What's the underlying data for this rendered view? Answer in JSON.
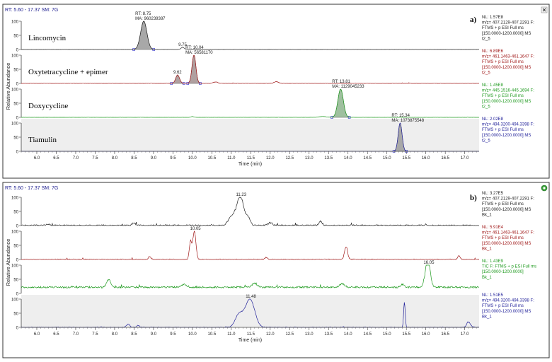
{
  "colors": {
    "black": "#222222",
    "red": "#a01818",
    "green": "#1f9a1f",
    "blue": "#22229a",
    "fill_gray": "#a8a8a8",
    "fill_red": "#b0a0a0",
    "fill_green": "#9fc09f",
    "shade": "#eeeeee",
    "header_blue": "#202090"
  },
  "chart_data": [
    {
      "type": "line",
      "panel_label": "a)",
      "header": "RT: 5.60 - 17.37  SM: 7G",
      "corner_icon": "pin-icon",
      "xlabel": "Time (min)",
      "ylabel": "Relative Abundance",
      "xlim": [
        5.6,
        17.37
      ],
      "x_ticks": [
        "6.0",
        "6.5",
        "7.0",
        "7.5",
        "8.0",
        "8.5",
        "9.0",
        "9.5",
        "10.0",
        "10.5",
        "11.0",
        "11.5",
        "12.0",
        "12.5",
        "13.0",
        "13.5",
        "14.0",
        "14.5",
        "15.0",
        "15.5",
        "16.0",
        "16.5",
        "17.0"
      ],
      "series": [
        {
          "name": "Lincomycin",
          "color": "black",
          "fill": "fill_gray",
          "y_ticks": [
            "100",
            "50",
            "0"
          ],
          "info": [
            "NL: 1.57E8",
            "m/z= 407.2129-407.2291 F:",
            "FTMS + p ESI Full ms",
            "[150.0000-1200.0000]  MS",
            "t2_5"
          ],
          "annotations": [
            {
              "x": 8.75,
              "y": 100,
              "lines": [
                "RT: 8.75",
                "MA: 960239387"
              ]
            },
            {
              "x": 9.75,
              "y": 8,
              "lines": [
                "9.75"
              ]
            }
          ],
          "peaks": [
            {
              "x": 8.75,
              "y": 100,
              "w": 0.08,
              "filled": true
            },
            {
              "x": 9.75,
              "y": 8,
              "w": 0.04,
              "filled": false
            }
          ],
          "noise": 0.4
        },
        {
          "name": "Oxytetracycline + epimer",
          "color": "red",
          "fill": "fill_red",
          "y_ticks": [
            "100",
            "50",
            "0"
          ],
          "info": [
            "NL: 6.89E6",
            "m/z= 461.1463-461.1647 F:",
            "FTMS + p ESI Full ms",
            "[150.0000-1200.0000]  MS",
            "t2_5"
          ],
          "annotations": [
            {
              "x": 10.04,
              "y": 100,
              "lines": [
                "RT: 10.04",
                "MA: 56581170"
              ]
            },
            {
              "x": 9.62,
              "y": 30,
              "lines": [
                "9.62"
              ]
            }
          ],
          "peaks": [
            {
              "x": 10.04,
              "y": 100,
              "w": 0.05,
              "filled": true
            },
            {
              "x": 9.62,
              "y": 30,
              "w": 0.05,
              "filled": true
            },
            {
              "x": 10.6,
              "y": 5,
              "w": 0.06,
              "filled": false
            },
            {
              "x": 12.15,
              "y": 6,
              "w": 0.06,
              "filled": false
            }
          ],
          "noise": 0.8
        },
        {
          "name": "Doxycycline",
          "color": "green",
          "fill": "fill_green",
          "y_ticks": [
            "100",
            "50",
            "0"
          ],
          "info": [
            "NL: 1.45E8",
            "m/z= 445.1516-445.1694 F:",
            "FTMS + p ESI Full ms",
            "[150.0000-1200.0000]  MS",
            "t2_5"
          ],
          "annotations": [
            {
              "x": 13.81,
              "y": 100,
              "lines": [
                "RT: 13.81",
                "MA: 1129045233"
              ]
            }
          ],
          "peaks": [
            {
              "x": 13.81,
              "y": 100,
              "w": 0.07,
              "filled": true
            },
            {
              "x": 13.35,
              "y": 3,
              "w": 0.1,
              "filled": false
            },
            {
              "x": 10.0,
              "y": 3,
              "w": 0.04,
              "filled": false
            }
          ],
          "noise": 0.4
        },
        {
          "name": "Tiamulin",
          "color": "blue",
          "fill": "fill_gray",
          "y_ticks": [
            "100",
            "50",
            "0"
          ],
          "info": [
            "NL: 2.02E8",
            "m/z= 494.3200-494.3398 F:",
            "FTMS + p ESI Full ms",
            "[150.0000-1200.0000]  MS",
            "t2_5"
          ],
          "annotations": [
            {
              "x": 15.34,
              "y": 100,
              "lines": [
                "RT: 15.34",
                "MA: 1073875548"
              ]
            }
          ],
          "peaks": [
            {
              "x": 15.34,
              "y": 100,
              "w": 0.05,
              "filled": true
            }
          ],
          "noise": 0.3,
          "shaded": true
        }
      ]
    },
    {
      "type": "line",
      "panel_label": "b)",
      "header": "RT: 5.60 - 17.37  SM: 7G",
      "corner_icon": "refresh-icon",
      "xlabel": "Time (min)",
      "ylabel": "Relative Abundance",
      "xlim": [
        5.6,
        17.37
      ],
      "x_ticks": [
        "6.0",
        "6.5",
        "7.0",
        "7.5",
        "8.0",
        "8.5",
        "9.0",
        "9.5",
        "10.0",
        "10.5",
        "11.0",
        "11.5",
        "12.0",
        "12.5",
        "13.0",
        "13.5",
        "14.0",
        "14.5",
        "15.0",
        "15.5",
        "16.0",
        "16.5",
        "17.0"
      ],
      "series": [
        {
          "name": "",
          "color": "black",
          "y_ticks": [
            "100",
            "50",
            "0"
          ],
          "info": [
            "NL: 3.27E5",
            "m/z= 407.2129-407.2291 F:",
            "FTMS + p ESI Full ms",
            "[150.0000-1200.0000]  MS",
            "Bk_1"
          ],
          "annotations": [
            {
              "x": 11.23,
              "y": 100,
              "lines": [
                "11.23"
              ]
            }
          ],
          "peaks": [
            {
              "x": 11.23,
              "y": 100,
              "w": 0.1,
              "filled": false
            },
            {
              "x": 11.0,
              "y": 28,
              "w": 0.08,
              "filled": false
            },
            {
              "x": 11.45,
              "y": 22,
              "w": 0.05,
              "filled": false
            },
            {
              "x": 13.3,
              "y": 15,
              "w": 0.04,
              "filled": false
            },
            {
              "x": 12.0,
              "y": 10,
              "w": 0.06,
              "filled": false
            },
            {
              "x": 8.5,
              "y": 8,
              "w": 0.05,
              "filled": false
            },
            {
              "x": 16.0,
              "y": 5,
              "w": 0.03,
              "filled": false
            },
            {
              "x": 6.3,
              "y": 5,
              "w": 0.05,
              "filled": false
            }
          ],
          "noise": 3
        },
        {
          "name": "",
          "color": "red",
          "y_ticks": [
            "100",
            "50",
            "0"
          ],
          "info": [
            "NL: 5.91E4",
            "m/z= 461.1463-461.1647 F:",
            "FTMS + p ESI Full ms",
            "[150.0000-1200.0000]  MS",
            "Bk_1"
          ],
          "annotations": [
            {
              "x": 10.05,
              "y": 100,
              "lines": [
                "10.05"
              ]
            }
          ],
          "peaks": [
            {
              "x": 10.05,
              "y": 100,
              "w": 0.04,
              "filled": false
            },
            {
              "x": 9.95,
              "y": 62,
              "w": 0.03,
              "filled": false
            },
            {
              "x": 13.95,
              "y": 45,
              "w": 0.04,
              "filled": false
            },
            {
              "x": 8.9,
              "y": 10,
              "w": 0.03,
              "filled": false
            },
            {
              "x": 16.85,
              "y": 14,
              "w": 0.03,
              "filled": false
            },
            {
              "x": 11.9,
              "y": 8,
              "w": 0.04,
              "filled": false
            }
          ],
          "noise": 2
        },
        {
          "name": "",
          "color": "green",
          "y_ticks": [
            "100",
            "50",
            "0"
          ],
          "info": [
            "NL: 1.43E9",
            "TIC F: FTMS + p ESI Full ms",
            "[150.0000-1200.0000]",
            "Bk_1"
          ],
          "annotations": [
            {
              "x": 16.05,
              "y": 100,
              "lines": [
                "16.05"
              ]
            }
          ],
          "peaks": [
            {
              "x": 16.05,
              "y": 100,
              "w": 0.06,
              "filled": false
            },
            {
              "x": 7.85,
              "y": 28,
              "w": 0.05,
              "filled": false
            },
            {
              "x": 11.6,
              "y": 15,
              "w": 0.06,
              "filled": false
            },
            {
              "x": 13.85,
              "y": 12,
              "w": 0.06,
              "filled": false
            },
            {
              "x": 9.8,
              "y": 10,
              "w": 0.06,
              "filled": false
            },
            {
              "x": 15.4,
              "y": 10,
              "w": 0.05,
              "filled": false
            }
          ],
          "baseline": 22,
          "noise": 3
        },
        {
          "name": "",
          "color": "blue",
          "y_ticks": [
            "100",
            "50",
            "0"
          ],
          "info": [
            "NL: 1.51E5",
            "m/z= 494.3200-494.3398 F:",
            "FTMS + p ESI Full ms",
            "[150.0000-1200.0000]  MS",
            "Bk_1"
          ],
          "annotations": [
            {
              "x": 11.48,
              "y": 100,
              "lines": [
                "11.48"
              ]
            }
          ],
          "peaks": [
            {
              "x": 11.48,
              "y": 100,
              "w": 0.12,
              "filled": false
            },
            {
              "x": 11.2,
              "y": 45,
              "w": 0.1,
              "filled": false
            },
            {
              "x": 15.45,
              "y": 90,
              "w": 0.02,
              "filled": false
            },
            {
              "x": 17.1,
              "y": 18,
              "w": 0.05,
              "filled": false
            },
            {
              "x": 8.35,
              "y": 12,
              "w": 0.04,
              "filled": false
            },
            {
              "x": 8.6,
              "y": 8,
              "w": 0.03,
              "filled": false
            }
          ],
          "noise": 1.5,
          "shaded": true
        }
      ]
    }
  ]
}
